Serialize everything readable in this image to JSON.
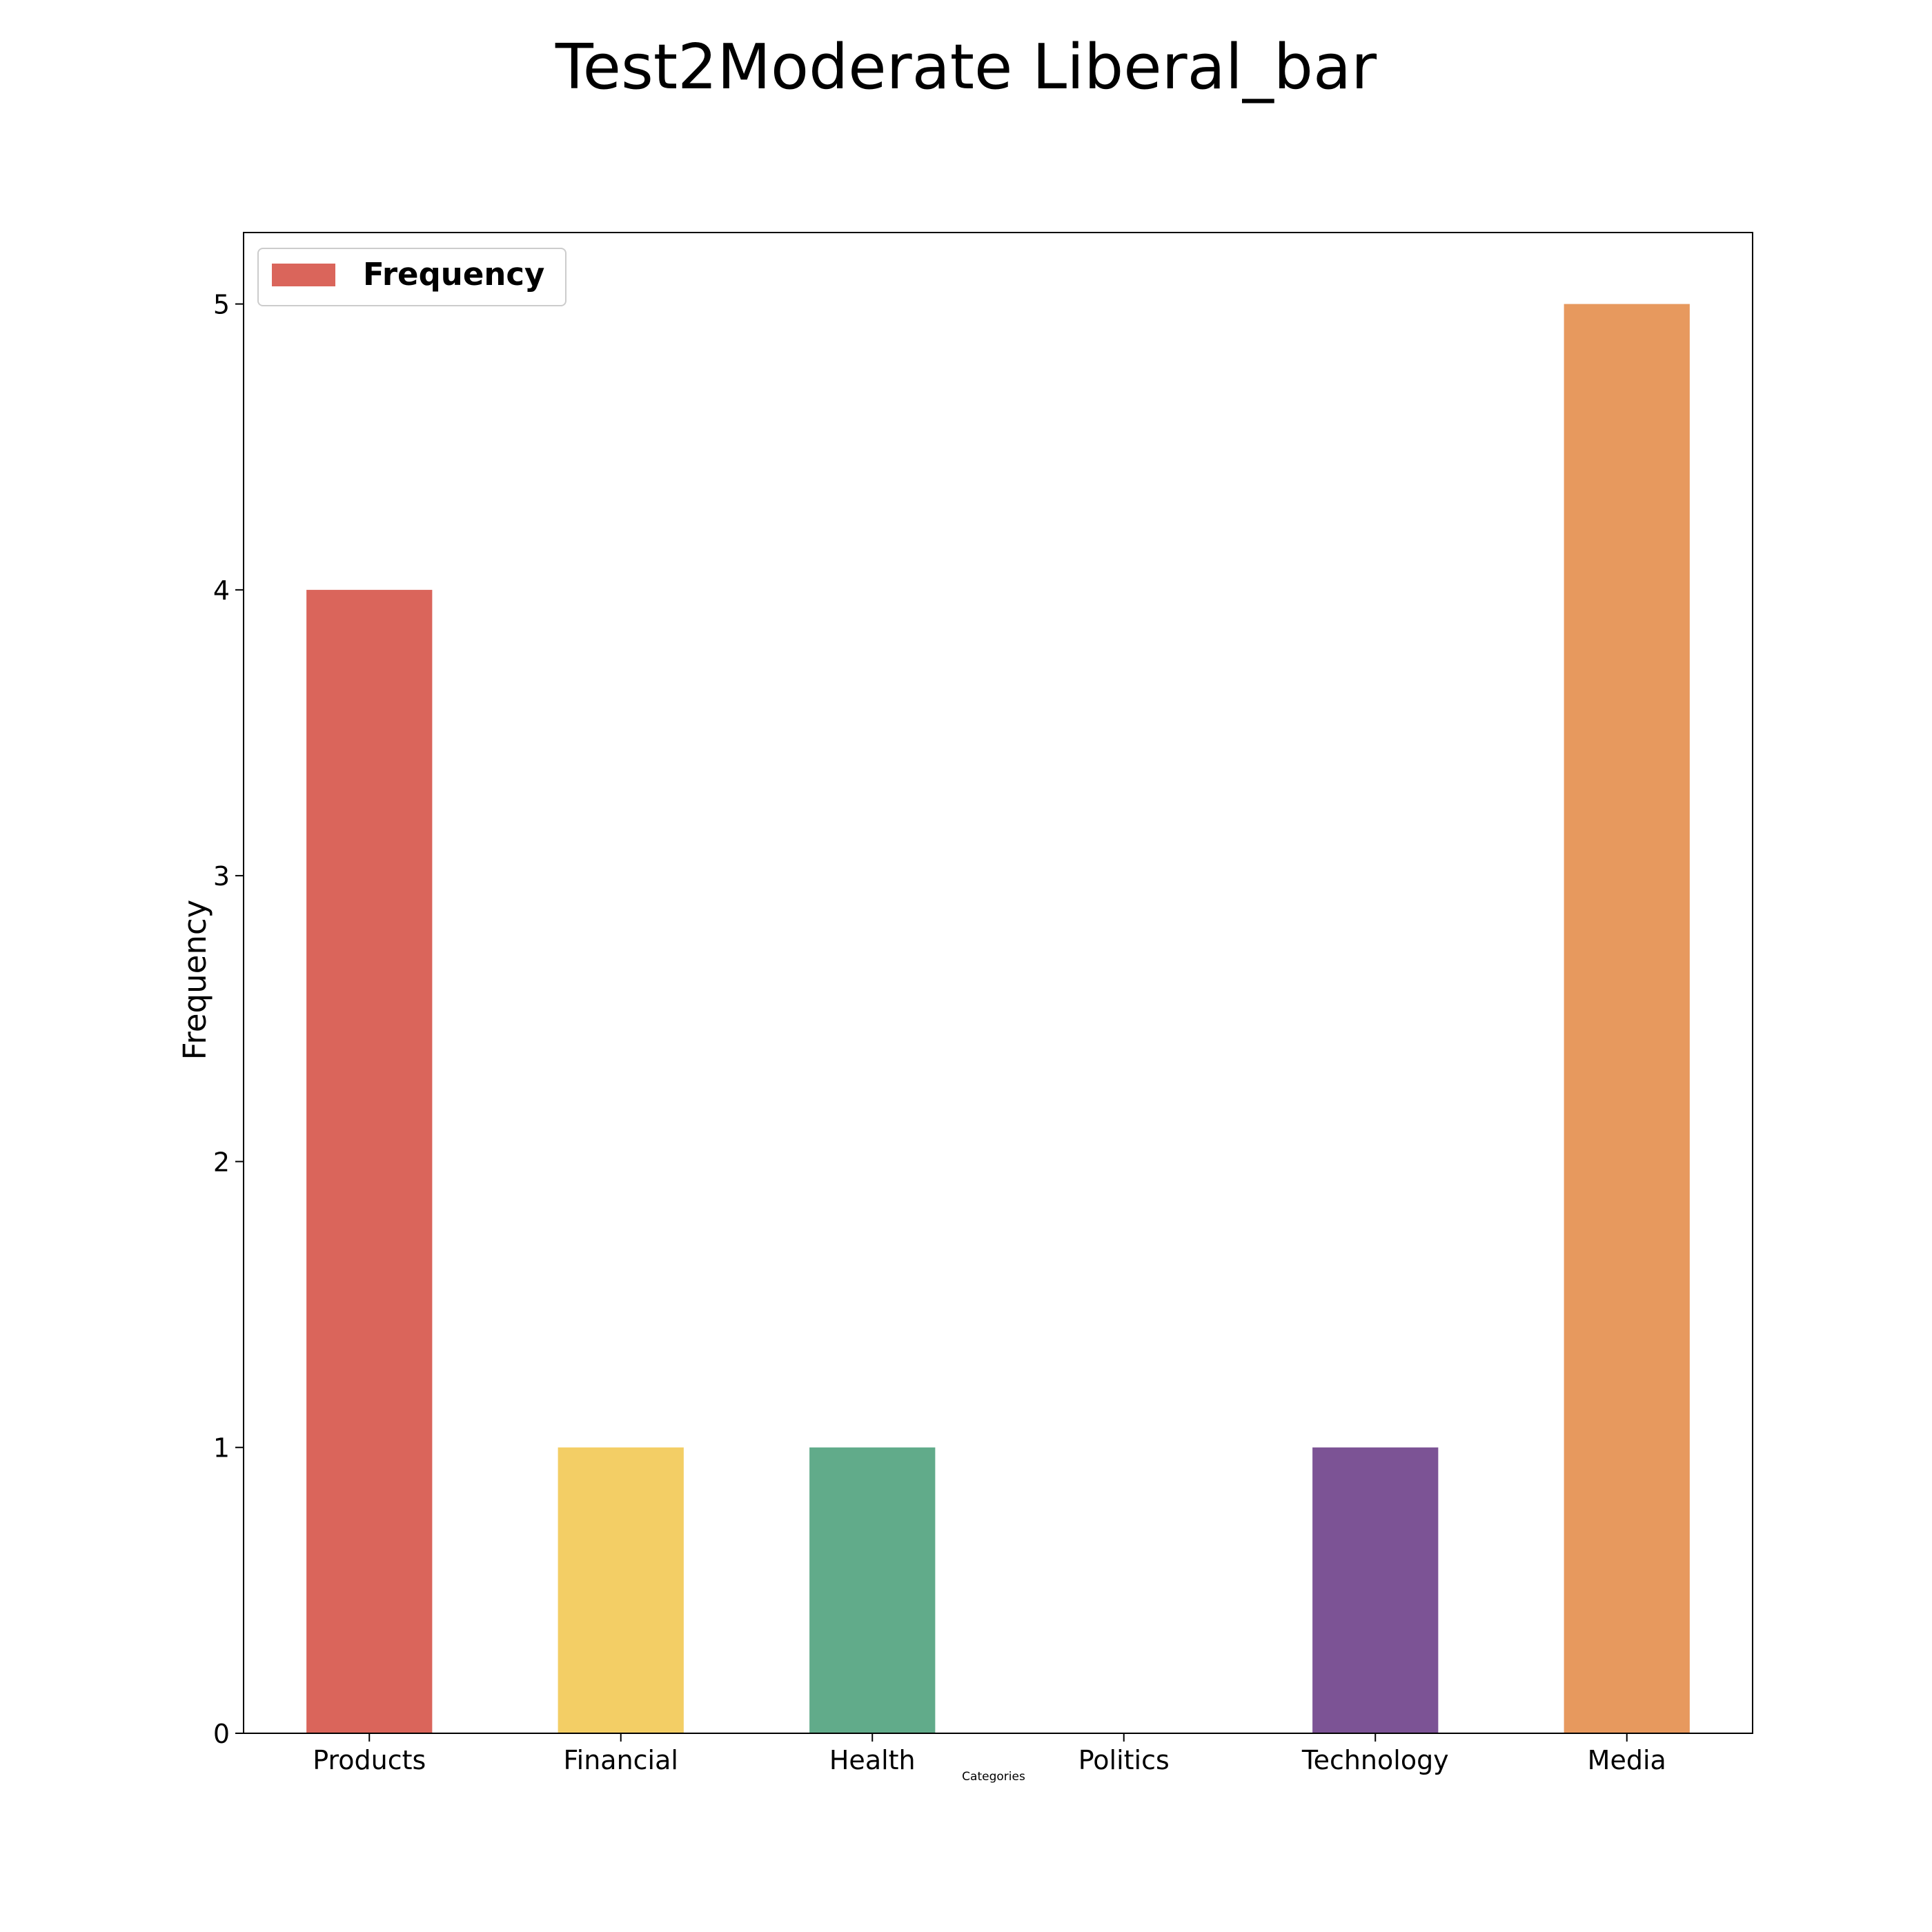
{
  "chart_data": {
    "type": "bar",
    "title": "Test2Moderate Liberal_bar",
    "xlabel": "Categories",
    "ylabel": "Frequency",
    "categories": [
      "Products",
      "Financial",
      "Health",
      "Politics",
      "Technology",
      "Media"
    ],
    "values": [
      4,
      1,
      1,
      0,
      1,
      5
    ],
    "colors": [
      "#da655b",
      "#f3ce65",
      "#61ab8a",
      "#4a90c4",
      "#7c5395",
      "#e7995e"
    ],
    "ylim": [
      0,
      5.25
    ],
    "yticks": [
      0,
      1,
      2,
      3,
      4,
      5
    ],
    "grid": false,
    "legend": {
      "position": "top-left",
      "entries": [
        {
          "label": "Frequency",
          "color": "#da655b"
        }
      ]
    }
  }
}
